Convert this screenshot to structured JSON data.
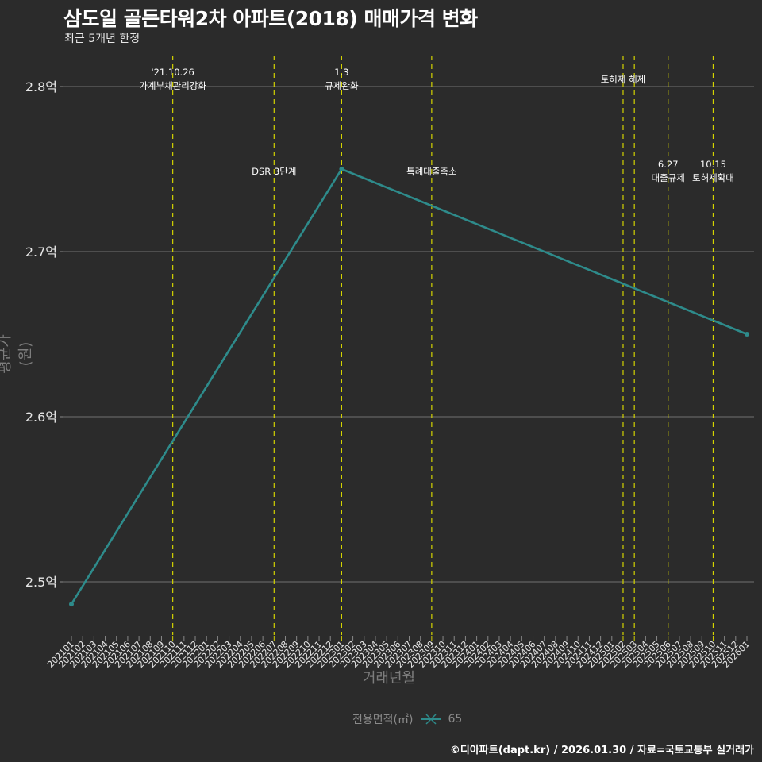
{
  "header": {
    "title": "삼도일 골든타워2차 아파트(2018) 매매가격 변화",
    "subtitle": "최근 5개년 한정"
  },
  "axes": {
    "ylabel": "평균가(원)",
    "xlabel": "거래년월"
  },
  "legend": {
    "title": "전용면적(㎡)",
    "items": [
      {
        "label": "65",
        "color": "#2e8b8b"
      }
    ]
  },
  "caption": "©디아파트(dapt.kr) / 2026.01.30 / 자료=국토교통부 실거래가",
  "colors": {
    "background": "#2b2b2b",
    "grid": "#5a5a5a",
    "series": "#2e8b8b",
    "event_line": "#d4d400",
    "text": "#ffffff",
    "axis_title": "#7d7d7d"
  },
  "chart_data": {
    "type": "line",
    "title": "삼도일 골든타워2차 아파트(2018) 매매가격 변화",
    "subtitle": "최근 5개년 한정",
    "xlabel": "거래년월",
    "ylabel": "평균가(원)",
    "ylim": [
      2.475,
      2.82
    ],
    "y_unit": "억",
    "y_ticks": [
      {
        "value": 2.5,
        "label": "2.5억"
      },
      {
        "value": 2.6,
        "label": "2.6억"
      },
      {
        "value": 2.7,
        "label": "2.7억"
      },
      {
        "value": 2.8,
        "label": "2.8억"
      }
    ],
    "grid": true,
    "legend_position": "bottom",
    "categories": [
      "202101",
      "202102",
      "202103",
      "202104",
      "202105",
      "202106",
      "202107",
      "202108",
      "202109",
      "202110",
      "202111",
      "202112",
      "202201",
      "202202",
      "202203",
      "202204",
      "202205",
      "202206",
      "202207",
      "202208",
      "202209",
      "202210",
      "202211",
      "202212",
      "202301",
      "202302",
      "202303",
      "202304",
      "202305",
      "202306",
      "202307",
      "202308",
      "202309",
      "202310",
      "202311",
      "202312",
      "202401",
      "202402",
      "202403",
      "202404",
      "202405",
      "202406",
      "202407",
      "202408",
      "202409",
      "202410",
      "202411",
      "202412",
      "202501",
      "202502",
      "202503",
      "202504",
      "202505",
      "202506",
      "202507",
      "202508",
      "202509",
      "202510",
      "202511",
      "202512",
      "202601"
    ],
    "series": [
      {
        "name": "65",
        "color": "#2e8b8b",
        "points": [
          {
            "x": "202101",
            "y": 2.4865
          },
          {
            "x": "202301",
            "y": 2.75
          },
          {
            "x": "202601",
            "y": 2.65
          }
        ]
      }
    ],
    "annotations": [
      {
        "x": "202110",
        "lines": [
          "'21.10.26",
          "가계부채관리강화"
        ],
        "pos": "top"
      },
      {
        "x": "202207",
        "lines": [
          "DSR 3단계"
        ],
        "pos": "mid"
      },
      {
        "x": "202301",
        "lines": [
          "1.3",
          "규제완화"
        ],
        "pos": "top"
      },
      {
        "x": "202309",
        "lines": [
          "특례대출축소"
        ],
        "pos": "mid"
      },
      {
        "x": "202502",
        "lines": [
          "토허제 해제"
        ],
        "pos": "top"
      },
      {
        "x": "202503",
        "lines": [],
        "pos": "none"
      },
      {
        "x": "202506",
        "lines": [
          "6.27",
          "대출규제"
        ],
        "pos": "mid"
      },
      {
        "x": "202510",
        "lines": [
          "10.15",
          "토허제확대"
        ],
        "pos": "mid"
      }
    ]
  }
}
